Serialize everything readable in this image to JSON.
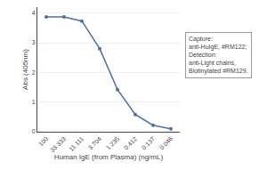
{
  "chart_data": {
    "type": "line",
    "categories": [
      "100",
      "33.333",
      "11.111",
      "3.704",
      "1.235",
      "0.412",
      "0.137",
      "0.046"
    ],
    "values": [
      3.87,
      3.87,
      3.73,
      2.8,
      1.42,
      0.58,
      0.22,
      0.1
    ],
    "color": "#4e6fa3",
    "marker": "circle",
    "xlabel": "Human IgE (from Plasma) (ng/mL)",
    "ylabel": "Abs (405nm)",
    "ylim": [
      0,
      4.2
    ],
    "yticks": [
      0,
      1,
      2,
      3,
      4
    ],
    "grid": true,
    "annotations": [
      "Capture:",
      "anti-HuIgE, #RM122;",
      "Detection:",
      "anti-Light chains,",
      "Biotinylated #RM129."
    ]
  }
}
